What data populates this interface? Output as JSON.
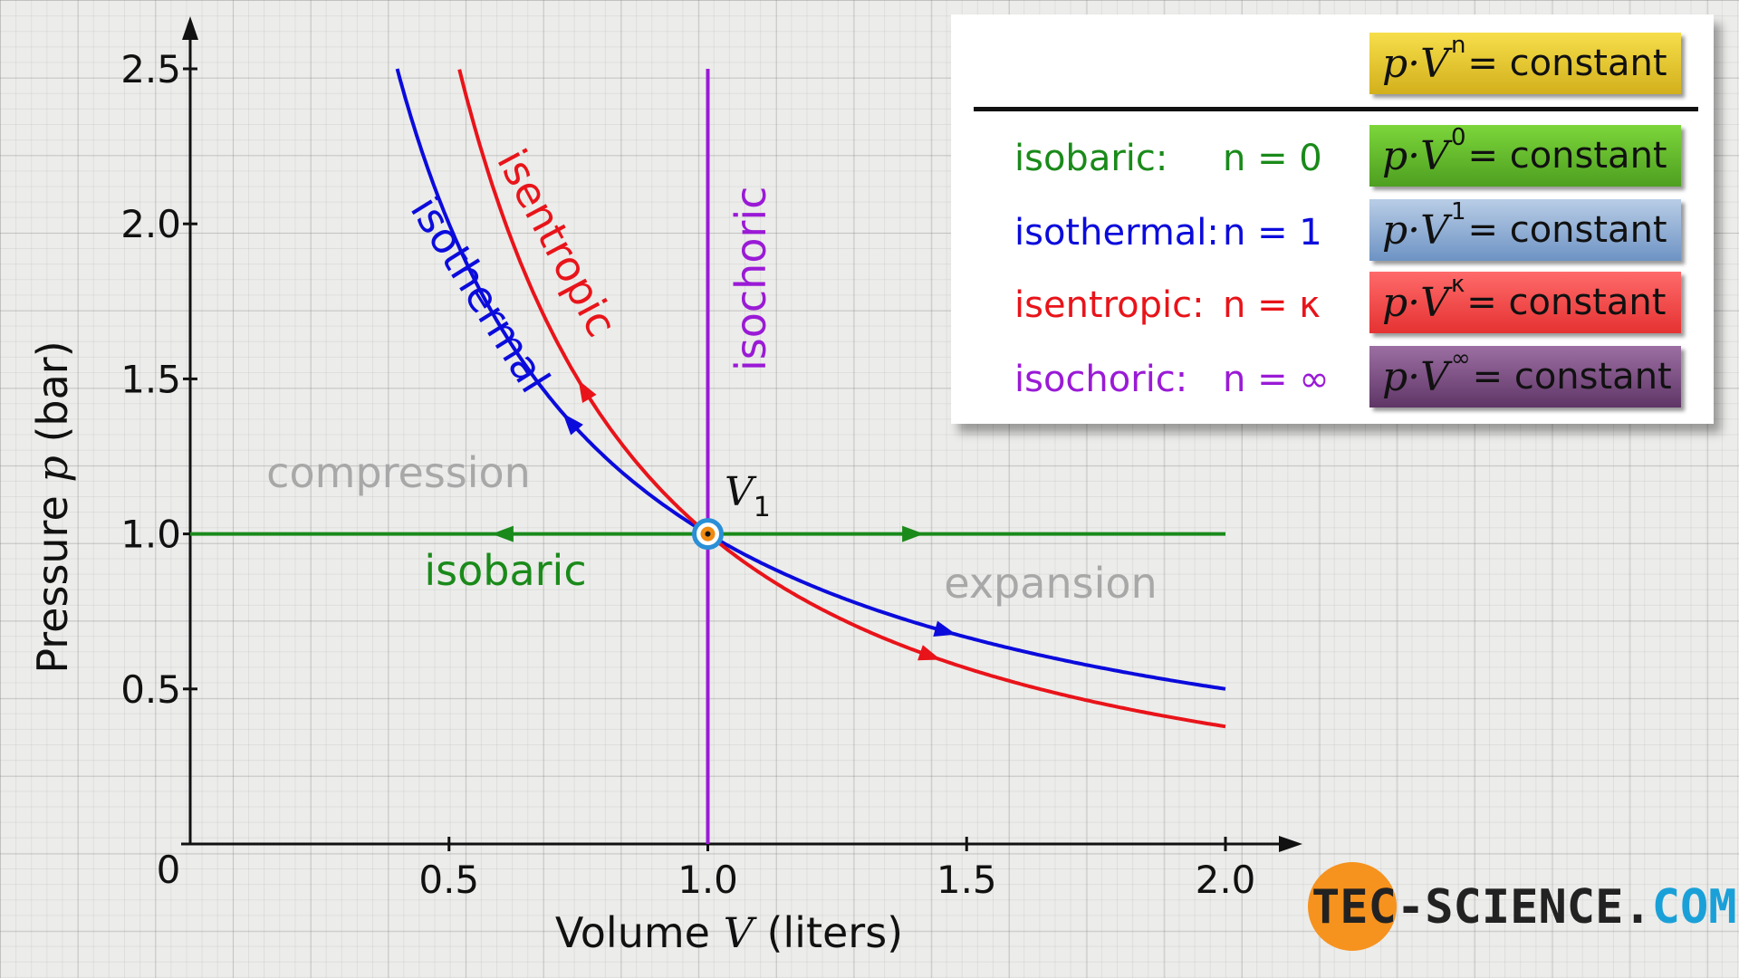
{
  "chart_data": {
    "type": "line",
    "xlabel": {
      "prefix": "Volume ",
      "var": "V",
      "suffix": " (liters)"
    },
    "ylabel": {
      "prefix": "Pressure ",
      "var": "p",
      "suffix": " (bar)"
    },
    "xlim": [
      0,
      2.0
    ],
    "ylim": [
      0,
      2.5
    ],
    "x_ticks": [
      "0.5",
      "1.0",
      "1.5",
      "2.0"
    ],
    "y_ticks": [
      "0.5",
      "1.0",
      "1.5",
      "2.0",
      "2.5"
    ],
    "origin_label": "0",
    "point": {
      "label": "V",
      "subscript": "1",
      "x": 1.0,
      "y": 1.0
    },
    "series": [
      {
        "name": "isobaric",
        "color": "#1a8a1a",
        "exponent": 0,
        "x_range": [
          0,
          2.0
        ]
      },
      {
        "name": "isothermal",
        "color": "#0b0bdc",
        "exponent": 1,
        "x_range": [
          0.4,
          2.0
        ]
      },
      {
        "name": "isentropic",
        "color": "#e8141a",
        "exponent": 1.4,
        "x_range": [
          0.52,
          2.0
        ]
      },
      {
        "name": "isochoric",
        "color": "#9a1ad6",
        "x": 1.0,
        "y_range": [
          0,
          2.5
        ]
      }
    ],
    "annotations": [
      "compression",
      "expansion"
    ]
  },
  "legend": {
    "header_exponent": "n",
    "constant_text": "= constant",
    "pv_text": "p·V",
    "rows": [
      {
        "name": "isobaric:",
        "n": "n = 0",
        "exp": "0",
        "color": "#1a8a1a",
        "box": "linear-gradient(#7cd63a,#4e9f20)"
      },
      {
        "name": "isothermal:",
        "n": "n = 1",
        "exp": "1",
        "color": "#0b0bdc",
        "box": "linear-gradient(#b9cde6,#6d93c4)"
      },
      {
        "name": "isentropic:",
        "n": "n = κ",
        "exp": "κ",
        "color": "#e8141a",
        "box": "linear-gradient(#ff6a6a,#e53232)"
      },
      {
        "name": "isochoric:",
        "n": "n = ∞",
        "exp": "∞",
        "color": "#9a1ad6",
        "box": "linear-gradient(#9c6fa3,#5f3566)"
      }
    ],
    "header_box": "linear-gradient(#f6de4a,#d2b01c)"
  },
  "logo": {
    "part1": "TEC-SCIENCE.",
    "part2": "COM"
  }
}
